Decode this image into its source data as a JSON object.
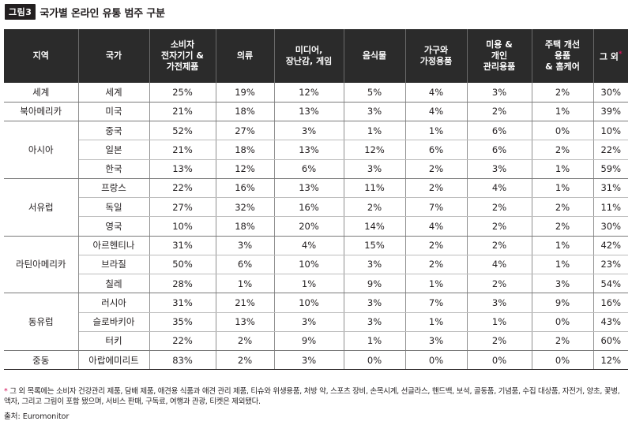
{
  "figure": {
    "badge": "그림3",
    "title": "국가별 온라인 유통 범주 구분"
  },
  "table": {
    "headers": [
      {
        "lines": [
          "지역"
        ]
      },
      {
        "lines": [
          "국가"
        ]
      },
      {
        "lines": [
          "소비자",
          "전자기기 &",
          "가전제품"
        ]
      },
      {
        "lines": [
          "의류"
        ]
      },
      {
        "lines": [
          "미디어,",
          "장난감, 게임"
        ]
      },
      {
        "lines": [
          "음식물"
        ]
      },
      {
        "lines": [
          "가구와",
          "가정용품"
        ]
      },
      {
        "lines": [
          "미용 &",
          "개인",
          "관리용품"
        ]
      },
      {
        "lines": [
          "주택 개선",
          "용품",
          "& 홈케어"
        ]
      },
      {
        "lines": [
          "그 외"
        ],
        "sup": "*"
      }
    ],
    "groups": [
      {
        "region": "세계",
        "rows": [
          {
            "country": "세계",
            "values": [
              "25%",
              "19%",
              "12%",
              "5%",
              "4%",
              "3%",
              "2%",
              "30%"
            ]
          }
        ]
      },
      {
        "region": "북아메리카",
        "rows": [
          {
            "country": "미국",
            "values": [
              "21%",
              "18%",
              "13%",
              "3%",
              "4%",
              "2%",
              "1%",
              "39%"
            ]
          }
        ]
      },
      {
        "region": "아시아",
        "rows": [
          {
            "country": "중국",
            "values": [
              "52%",
              "27%",
              "3%",
              "1%",
              "1%",
              "6%",
              "0%",
              "10%"
            ]
          },
          {
            "country": "일본",
            "values": [
              "21%",
              "18%",
              "13%",
              "12%",
              "6%",
              "6%",
              "2%",
              "22%"
            ]
          },
          {
            "country": "한국",
            "values": [
              "13%",
              "12%",
              "6%",
              "3%",
              "2%",
              "3%",
              "1%",
              "59%"
            ]
          }
        ]
      },
      {
        "region": "서유럽",
        "rows": [
          {
            "country": "프랑스",
            "values": [
              "22%",
              "16%",
              "13%",
              "11%",
              "2%",
              "4%",
              "1%",
              "31%"
            ]
          },
          {
            "country": "독일",
            "values": [
              "27%",
              "32%",
              "16%",
              "2%",
              "7%",
              "2%",
              "2%",
              "11%"
            ]
          },
          {
            "country": "영국",
            "values": [
              "10%",
              "18%",
              "20%",
              "14%",
              "4%",
              "2%",
              "2%",
              "30%"
            ]
          }
        ]
      },
      {
        "region": "라틴아메리카",
        "rows": [
          {
            "country": "아르헨티나",
            "values": [
              "31%",
              "3%",
              "4%",
              "15%",
              "2%",
              "2%",
              "1%",
              "42%"
            ]
          },
          {
            "country": "브라질",
            "values": [
              "50%",
              "6%",
              "10%",
              "3%",
              "2%",
              "4%",
              "1%",
              "23%"
            ]
          },
          {
            "country": "칠레",
            "values": [
              "28%",
              "1%",
              "1%",
              "9%",
              "1%",
              "2%",
              "3%",
              "54%"
            ]
          }
        ]
      },
      {
        "region": "동유럽",
        "rows": [
          {
            "country": "러시아",
            "values": [
              "31%",
              "21%",
              "10%",
              "3%",
              "7%",
              "3%",
              "9%",
              "16%"
            ]
          },
          {
            "country": "슬로바키아",
            "values": [
              "35%",
              "13%",
              "3%",
              "3%",
              "1%",
              "1%",
              "0%",
              "43%"
            ]
          },
          {
            "country": "터키",
            "values": [
              "22%",
              "2%",
              "9%",
              "1%",
              "3%",
              "2%",
              "2%",
              "60%"
            ]
          }
        ]
      },
      {
        "region": "중동",
        "rows": [
          {
            "country": "아랍에미리트",
            "values": [
              "83%",
              "2%",
              "3%",
              "0%",
              "0%",
              "0%",
              "0%",
              "12%"
            ]
          }
        ]
      }
    ]
  },
  "footnote": {
    "marker": "*",
    "text": "그 외 목록에는 소비자 건강관리 제품, 담배 제품, 애견용 식품과 애견 관리 제품, 티슈와 위생용품, 처방 약, 스포츠 장비, 손목시계, 선글라스, 핸드백, 보석, 골동품, 기념품, 수집 대상품, 자전거, 양초, 꽃병, 액자, 그리고 그림이 포함 됐으며, 서비스 판매, 구독료, 여행과 관광, 티켓은 제외됐다."
  },
  "source": "출처: Euromonitor",
  "colors": {
    "header_bg": "#2b2b2b",
    "accent": "#d4145a",
    "text": "#231f20"
  }
}
